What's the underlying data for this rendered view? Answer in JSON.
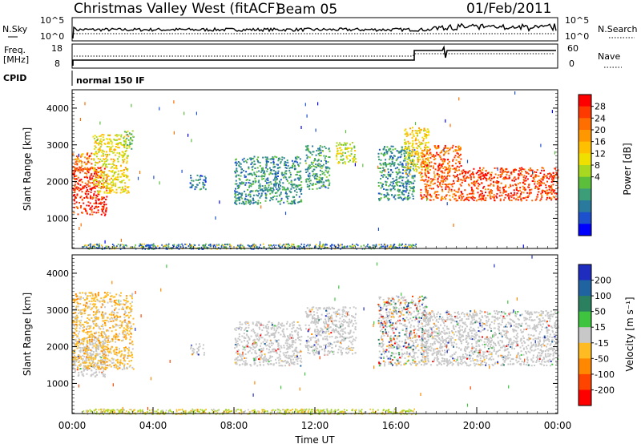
{
  "header": {
    "station": "Christmas Valley West (fitACF)",
    "beam": "Beam 05",
    "date": "01/Feb/2011"
  },
  "top_panels": {
    "nsky_label": "N.Sky",
    "nsky_ticks": [
      "10^5",
      "10^0"
    ],
    "nsearch_label": "N.Search",
    "nsearch_ticks": [
      "10^5",
      "10^0"
    ],
    "freq_label": "Freq.",
    "freq_unit": "[MHz]",
    "freq_ticks": [
      "18",
      "8"
    ],
    "nave_label": "Nave",
    "nave_ticks": [
      "60",
      "0"
    ],
    "cpid_label": "CPID",
    "cpid_value": "normal 150 IF"
  },
  "chart_data": [
    {
      "type": "heatmap",
      "quantity": "power",
      "ylabel": "Slant Range [km]",
      "ylim": [
        180,
        4500
      ],
      "yticks": [
        1000,
        2000,
        3000,
        4000
      ],
      "xlim_hours": [
        0,
        24
      ],
      "colorbar": {
        "label": "Power [dB]",
        "range": [
          0,
          32
        ],
        "ticks": [
          "28",
          "24",
          "20",
          "16",
          "12",
          "8",
          "4"
        ],
        "colors": [
          "#ff0000",
          "#ff3a00",
          "#ff6e00",
          "#ff9800",
          "#ffc000",
          "#f0e000",
          "#a8d820",
          "#5cbf3c",
          "#3c9e78",
          "#2a7a9e",
          "#1c50cc",
          "#0000ff"
        ]
      },
      "echo_regions": [
        {
          "t": [
            0.0,
            1.7
          ],
          "range": [
            1100,
            2400
          ],
          "power": 30
        },
        {
          "t": [
            0.0,
            1.0
          ],
          "range": [
            2300,
            2800
          ],
          "power": 26
        },
        {
          "t": [
            1.0,
            2.8
          ],
          "range": [
            1700,
            3300
          ],
          "power": 18
        },
        {
          "t": [
            2.5,
            3.0
          ],
          "range": [
            2900,
            3400
          ],
          "power": 12
        },
        {
          "t": [
            5.8,
            6.6
          ],
          "range": [
            1800,
            2200
          ],
          "power": 6
        },
        {
          "t": [
            8.0,
            11.3
          ],
          "range": [
            1400,
            2700
          ],
          "power": 8
        },
        {
          "t": [
            11.5,
            12.7
          ],
          "range": [
            1800,
            3000
          ],
          "power": 9
        },
        {
          "t": [
            13.0,
            14.0
          ],
          "range": [
            2500,
            3100
          ],
          "power": 16
        },
        {
          "t": [
            15.1,
            16.9
          ],
          "range": [
            1500,
            3000
          ],
          "power": 8
        },
        {
          "t": [
            16.4,
            17.6
          ],
          "range": [
            2200,
            3500
          ],
          "power": 19
        },
        {
          "t": [
            17.2,
            19.2
          ],
          "range": [
            1500,
            3000
          ],
          "power": 27
        },
        {
          "t": [
            19.2,
            24.0
          ],
          "range": [
            1500,
            2400
          ],
          "power": 29
        }
      ],
      "ground_scatter": {
        "t": [
          0.5,
          17.0
        ],
        "range": [
          180,
          320
        ]
      }
    },
    {
      "type": "heatmap",
      "quantity": "velocity",
      "ylabel": "Slant Range [km]",
      "ylim": [
        180,
        4500
      ],
      "yticks": [
        1000,
        2000,
        3000,
        4000
      ],
      "xlim_hours": [
        0,
        24
      ],
      "xticks": [
        "00:00",
        "04:00",
        "08:00",
        "12:00",
        "16:00",
        "20:00",
        "00:00"
      ],
      "xlabel": "Time UT",
      "colorbar": {
        "label": "Velocity [m s⁻¹]",
        "ticks": [
          "200",
          "100",
          "50",
          "15",
          "-15",
          "-50",
          "-100",
          "-200"
        ],
        "colors": [
          "#1f2dbf",
          "#1f63a0",
          "#2b8060",
          "#3ec43e",
          "#c8c8c8",
          "#ffbb22",
          "#ff8800",
          "#ff4400",
          "#ff0000"
        ]
      },
      "echo_regions": [
        {
          "t": [
            0.0,
            1.6
          ],
          "range": [
            1200,
            2300
          ],
          "vel_class": "ground"
        },
        {
          "t": [
            0.0,
            3.0
          ],
          "range": [
            1400,
            3500
          ],
          "vel_class": "slow-negative"
        },
        {
          "t": [
            5.8,
            6.5
          ],
          "range": [
            1800,
            2100
          ],
          "vel_class": "ground"
        },
        {
          "t": [
            8.0,
            11.3
          ],
          "range": [
            1500,
            2700
          ],
          "vel_class": "ground"
        },
        {
          "t": [
            11.5,
            14.0
          ],
          "range": [
            1800,
            3100
          ],
          "vel_class": "ground"
        },
        {
          "t": [
            15.1,
            17.5
          ],
          "range": [
            1500,
            3400
          ],
          "vel_class": "mixed"
        },
        {
          "t": [
            17.2,
            24.0
          ],
          "range": [
            1500,
            3000
          ],
          "vel_class": "ground"
        }
      ],
      "ground_scatter": {
        "t": [
          0.5,
          17.0
        ],
        "range": [
          180,
          320
        ]
      }
    }
  ]
}
